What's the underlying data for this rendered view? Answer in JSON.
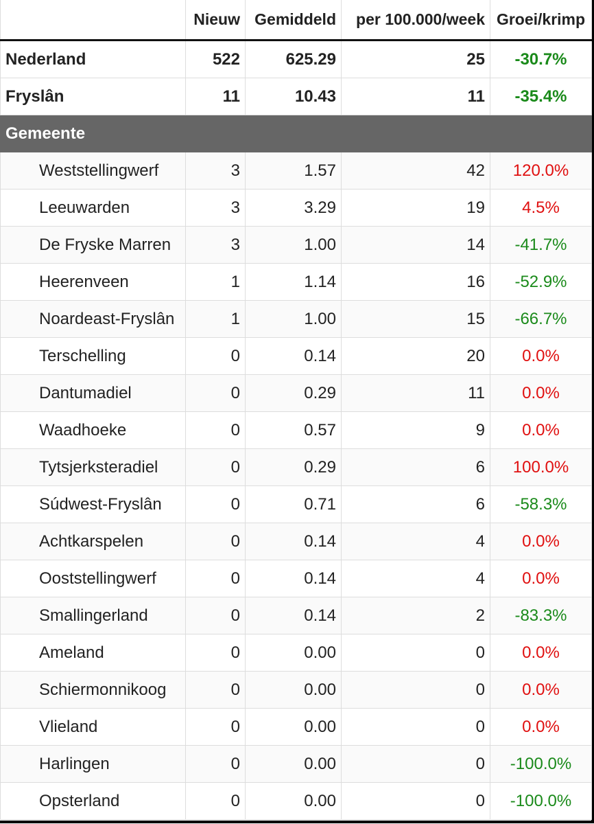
{
  "headers": [
    "",
    "Nieuw",
    "Gemiddeld",
    "per 100.000/week",
    "Groei/krimp"
  ],
  "summary": [
    {
      "name": "Nederland",
      "nieuw": "522",
      "gem": "625.29",
      "per": "25",
      "groei": "-30.7%",
      "trend": "neg"
    },
    {
      "name": "Fryslân",
      "nieuw": "11",
      "gem": "10.43",
      "per": "11",
      "groei": "-35.4%",
      "trend": "neg"
    }
  ],
  "section_label": "Gemeente",
  "rows": [
    {
      "name": "Weststellingwerf",
      "nieuw": "3",
      "gem": "1.57",
      "per": "42",
      "groei": "120.0%",
      "trend": "pos"
    },
    {
      "name": "Leeuwarden",
      "nieuw": "3",
      "gem": "3.29",
      "per": "19",
      "groei": "4.5%",
      "trend": "pos"
    },
    {
      "name": "De Fryske Marren",
      "nieuw": "3",
      "gem": "1.00",
      "per": "14",
      "groei": "-41.7%",
      "trend": "neg"
    },
    {
      "name": "Heerenveen",
      "nieuw": "1",
      "gem": "1.14",
      "per": "16",
      "groei": "-52.9%",
      "trend": "neg"
    },
    {
      "name": "Noardeast-Fryslân",
      "nieuw": "1",
      "gem": "1.00",
      "per": "15",
      "groei": "-66.7%",
      "trend": "neg"
    },
    {
      "name": "Terschelling",
      "nieuw": "0",
      "gem": "0.14",
      "per": "20",
      "groei": "0.0%",
      "trend": "pos"
    },
    {
      "name": "Dantumadiel",
      "nieuw": "0",
      "gem": "0.29",
      "per": "11",
      "groei": "0.0%",
      "trend": "pos"
    },
    {
      "name": "Waadhoeke",
      "nieuw": "0",
      "gem": "0.57",
      "per": "9",
      "groei": "0.0%",
      "trend": "pos"
    },
    {
      "name": "Tytsjerksteradiel",
      "nieuw": "0",
      "gem": "0.29",
      "per": "6",
      "groei": "100.0%",
      "trend": "pos"
    },
    {
      "name": "Súdwest-Fryslân",
      "nieuw": "0",
      "gem": "0.71",
      "per": "6",
      "groei": "-58.3%",
      "trend": "neg"
    },
    {
      "name": "Achtkarspelen",
      "nieuw": "0",
      "gem": "0.14",
      "per": "4",
      "groei": "0.0%",
      "trend": "pos"
    },
    {
      "name": "Ooststellingwerf",
      "nieuw": "0",
      "gem": "0.14",
      "per": "4",
      "groei": "0.0%",
      "trend": "pos"
    },
    {
      "name": "Smallingerland",
      "nieuw": "0",
      "gem": "0.14",
      "per": "2",
      "groei": "-83.3%",
      "trend": "neg"
    },
    {
      "name": "Ameland",
      "nieuw": "0",
      "gem": "0.00",
      "per": "0",
      "groei": "0.0%",
      "trend": "pos"
    },
    {
      "name": "Schiermonnikoog",
      "nieuw": "0",
      "gem": "0.00",
      "per": "0",
      "groei": "0.0%",
      "trend": "pos"
    },
    {
      "name": "Vlieland",
      "nieuw": "0",
      "gem": "0.00",
      "per": "0",
      "groei": "0.0%",
      "trend": "pos"
    },
    {
      "name": "Harlingen",
      "nieuw": "0",
      "gem": "0.00",
      "per": "0",
      "groei": "-100.0%",
      "trend": "neg"
    },
    {
      "name": "Opsterland",
      "nieuw": "0",
      "gem": "0.00",
      "per": "0",
      "groei": "-100.0%",
      "trend": "neg"
    }
  ],
  "colors": {
    "positive": "#e01010",
    "negative": "#1a8a1a",
    "section_bg": "#666666"
  }
}
